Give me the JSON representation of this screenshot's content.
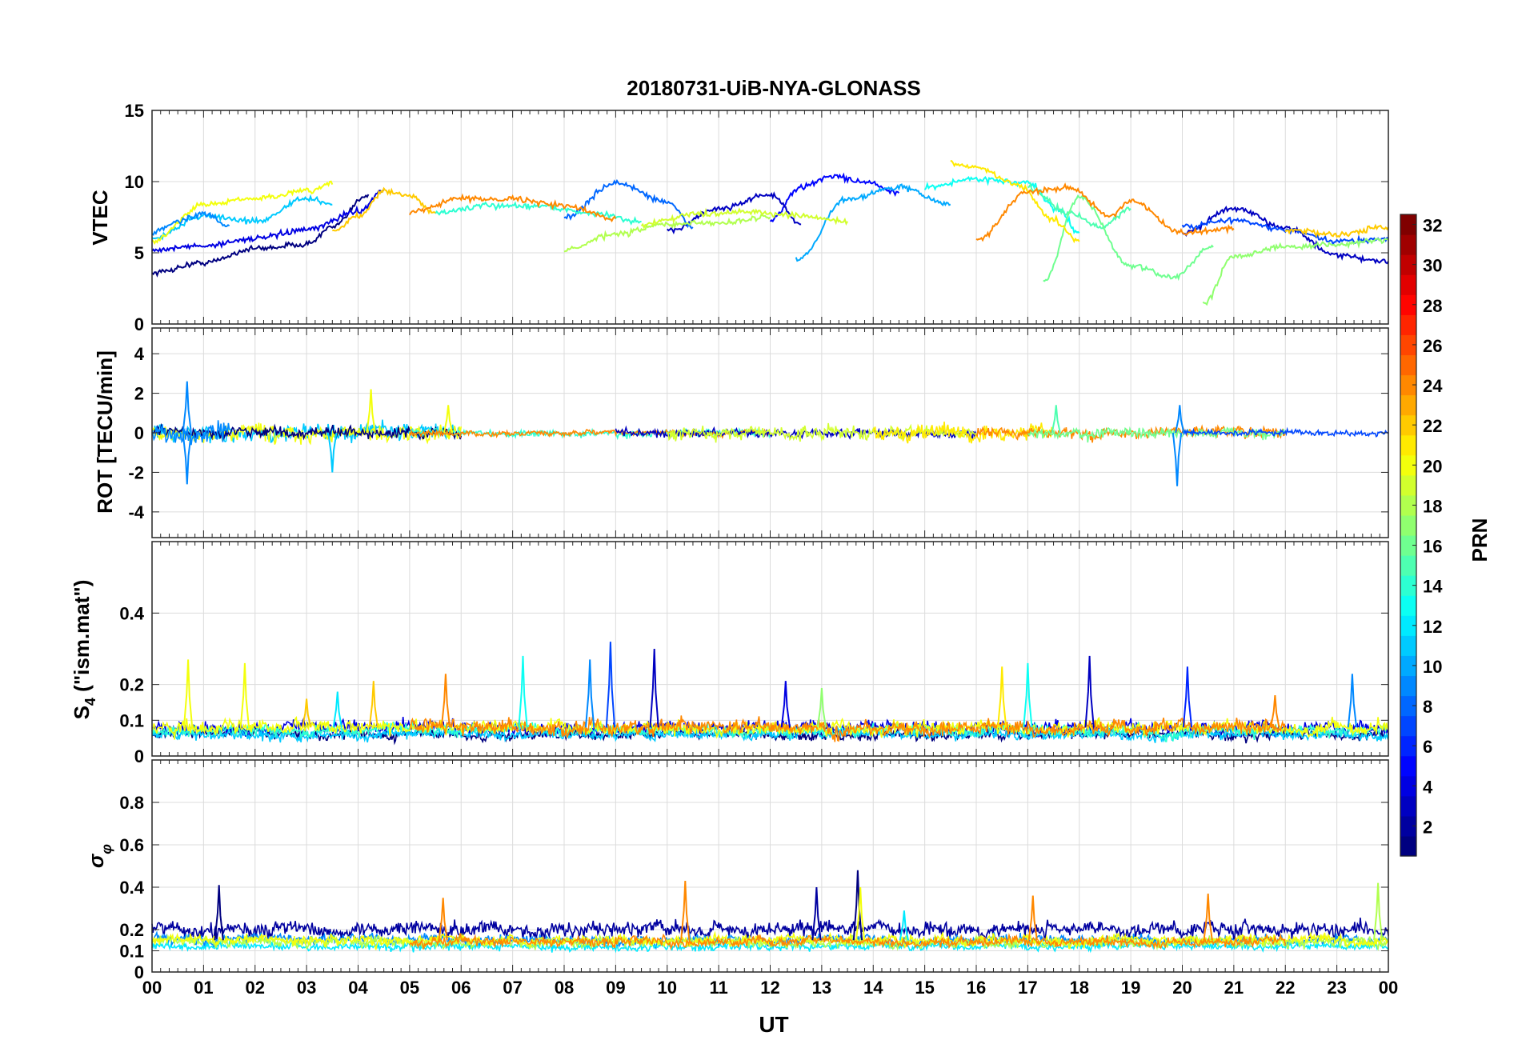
{
  "chart_data": [
    {
      "type": "line",
      "title": "20180731-UiB-NYA-GLONASS",
      "ylabel": "VTEC",
      "ylim": [
        0,
        15
      ],
      "yticks": [
        0,
        5,
        10,
        15
      ],
      "xlim": [
        0,
        24
      ],
      "series": [
        {
          "prn": 1,
          "x": [
            0.0,
            1.0,
            2.0,
            3.0,
            3.5,
            4.2
          ],
          "y": [
            3.6,
            4.3,
            5.3,
            5.6,
            6.8,
            9.1
          ]
        },
        {
          "prn": 4,
          "x": [
            0.0,
            1.0,
            2.0,
            3.0,
            4.0,
            4.5
          ],
          "y": [
            5.2,
            5.5,
            6.0,
            6.6,
            7.9,
            9.4
          ]
        },
        {
          "prn": 5,
          "x": [
            12.0,
            12.6,
            13.2,
            13.8,
            14.5
          ],
          "y": [
            7.3,
            9.6,
            10.4,
            10.0,
            9.2
          ]
        },
        {
          "prn": 3,
          "x": [
            10.0,
            11.0,
            12.0,
            12.6
          ],
          "y": [
            6.5,
            8.1,
            9.1,
            7.0
          ]
        },
        {
          "prn": 8,
          "x": [
            8.0,
            9.0,
            10.0,
            10.5
          ],
          "y": [
            7.5,
            9.9,
            8.6,
            6.8
          ]
        },
        {
          "prn": 3,
          "x": [
            20.0,
            21.0,
            22.0,
            23.0,
            24.0
          ],
          "y": [
            6.4,
            8.1,
            6.8,
            4.8,
            4.4
          ]
        },
        {
          "prn": 7,
          "x": [
            20.0,
            21.0,
            22.0,
            23.0,
            24.0
          ],
          "y": [
            6.8,
            7.3,
            6.6,
            5.8,
            6.0
          ]
        },
        {
          "prn": 10,
          "x": [
            12.5,
            13.5,
            14.5,
            15.5
          ],
          "y": [
            4.5,
            8.8,
            9.6,
            8.4
          ]
        },
        {
          "prn": 11,
          "x": [
            0.0,
            1.0,
            2.0,
            3.0,
            3.5
          ],
          "y": [
            6.0,
            7.6,
            7.2,
            8.8,
            8.4
          ]
        },
        {
          "prn": 13,
          "x": [
            15.0,
            16.0,
            17.0,
            17.6,
            18.0
          ],
          "y": [
            9.6,
            10.2,
            9.9,
            8.0,
            6.4
          ]
        },
        {
          "prn": 14,
          "x": [
            5.5,
            6.5,
            7.5,
            8.5,
            9.5
          ],
          "y": [
            7.8,
            8.3,
            8.3,
            7.8,
            7.2
          ]
        },
        {
          "prn": 15,
          "x": [
            17.0,
            17.8,
            18.4,
            19.0
          ],
          "y": [
            9.6,
            7.8,
            6.8,
            8.1
          ]
        },
        {
          "prn": 16,
          "x": [
            17.3,
            18.0,
            19.0,
            19.8,
            20.6
          ],
          "y": [
            3.0,
            8.9,
            4.1,
            3.3,
            5.4
          ]
        },
        {
          "prn": 17,
          "x": [
            20.4,
            21.0,
            22.0,
            23.0,
            24.0
          ],
          "y": [
            1.4,
            4.8,
            5.4,
            5.6,
            5.9
          ]
        },
        {
          "prn": 18,
          "x": [
            8.0,
            9.0,
            10.0,
            11.0,
            12.0
          ],
          "y": [
            5.2,
            6.3,
            7.0,
            7.1,
            7.5
          ]
        },
        {
          "prn": 19,
          "x": [
            9.5,
            10.5,
            11.5,
            12.5,
            13.5
          ],
          "y": [
            7.0,
            7.7,
            7.9,
            7.6,
            7.2
          ]
        },
        {
          "prn": 20,
          "x": [
            0.0,
            1.0,
            2.0,
            3.0,
            3.5
          ],
          "y": [
            5.8,
            8.4,
            8.8,
            9.3,
            9.8
          ]
        },
        {
          "prn": 21,
          "x": [
            15.5,
            16.0,
            16.8,
            17.5,
            18.0
          ],
          "y": [
            11.3,
            11.0,
            9.8,
            7.3,
            5.8
          ]
        },
        {
          "prn": 22,
          "x": [
            3.5,
            4.0,
            4.5,
            5.0,
            5.5
          ],
          "y": [
            6.5,
            7.6,
            9.3,
            9.0,
            7.8
          ]
        },
        {
          "prn": 22,
          "x": [
            22.0,
            23.0,
            24.0
          ],
          "y": [
            6.6,
            6.3,
            6.8
          ]
        },
        {
          "prn": 24,
          "x": [
            5.0,
            6.0,
            7.0,
            8.0,
            9.0
          ],
          "y": [
            7.9,
            8.8,
            8.8,
            8.3,
            7.4
          ]
        },
        {
          "prn": 24,
          "x": [
            16.0,
            17.0,
            17.8,
            18.6,
            19.0,
            20.0,
            21.0
          ],
          "y": [
            5.9,
            9.3,
            9.6,
            7.6,
            8.6,
            6.4,
            6.7
          ]
        },
        {
          "prn": 9,
          "x": [
            0.0,
            0.5,
            1.0,
            1.5
          ],
          "y": [
            6.4,
            7.2,
            7.8,
            6.9
          ]
        }
      ]
    },
    {
      "type": "line",
      "ylabel": "ROT [TECU/min]",
      "ylim": [
        -5.3,
        5.3
      ],
      "yticks": [
        -4,
        -2,
        0,
        2,
        4
      ],
      "xlim": [
        0,
        24
      ],
      "noise": [
        {
          "prn": 11,
          "from": 0.0,
          "to": 6.0,
          "sd": 0.35
        },
        {
          "prn": 20,
          "from": 0.0,
          "to": 6.0,
          "sd": 0.35
        },
        {
          "prn": 1,
          "from": 0.0,
          "to": 6.0,
          "sd": 0.22
        },
        {
          "prn": 14,
          "from": 5.0,
          "to": 12.0,
          "sd": 0.13
        },
        {
          "prn": 24,
          "from": 5.0,
          "to": 12.0,
          "sd": 0.12
        },
        {
          "prn": 3,
          "from": 9.0,
          "to": 16.0,
          "sd": 0.18
        },
        {
          "prn": 19,
          "from": 10.0,
          "to": 16.0,
          "sd": 0.28
        },
        {
          "prn": 21,
          "from": 14.0,
          "to": 17.5,
          "sd": 0.32
        },
        {
          "prn": 24,
          "from": 16.0,
          "to": 22.0,
          "sd": 0.24
        },
        {
          "prn": 16,
          "from": 17.0,
          "to": 22.0,
          "sd": 0.22
        },
        {
          "prn": 7,
          "from": 20.0,
          "to": 24.0,
          "sd": 0.12
        },
        {
          "prn": 9,
          "from": 0.0,
          "to": 1.5,
          "sd": 0.45
        }
      ],
      "spikes": [
        {
          "prn": 9,
          "x": 0.68,
          "y": 2.6
        },
        {
          "prn": 9,
          "x": 0.68,
          "y": -2.6
        },
        {
          "prn": 20,
          "x": 4.25,
          "y": 2.2
        },
        {
          "prn": 11,
          "x": 3.5,
          "y": -2.0
        },
        {
          "prn": 15,
          "x": 17.55,
          "y": 1.4
        },
        {
          "prn": 9,
          "x": 19.9,
          "y": -2.7
        },
        {
          "prn": 9,
          "x": 19.95,
          "y": 1.4
        },
        {
          "prn": 20,
          "x": 5.75,
          "y": 1.4
        }
      ]
    },
    {
      "type": "line",
      "ylabel": "S4 (\"ism.mat\")",
      "ylim": [
        0,
        0.6
      ],
      "yticks": [
        0,
        0.1,
        0.2,
        0.4
      ],
      "xlim": [
        0,
        24
      ],
      "noise": [
        {
          "prn": 1,
          "from": 0.0,
          "to": 24.0,
          "base": 0.06,
          "sd": 0.012
        },
        {
          "prn": 4,
          "from": 0.0,
          "to": 24.0,
          "base": 0.08,
          "sd": 0.015
        },
        {
          "prn": 11,
          "from": 0.0,
          "to": 24.0,
          "base": 0.06,
          "sd": 0.012
        },
        {
          "prn": 14,
          "from": 0.0,
          "to": 24.0,
          "base": 0.07,
          "sd": 0.014
        },
        {
          "prn": 20,
          "from": 0.0,
          "to": 24.0,
          "base": 0.08,
          "sd": 0.016
        },
        {
          "prn": 24,
          "from": 5.0,
          "to": 22.0,
          "base": 0.08,
          "sd": 0.018
        }
      ],
      "spikes": [
        {
          "prn": 20,
          "x": 0.7,
          "y": 0.27
        },
        {
          "prn": 20,
          "x": 1.8,
          "y": 0.26
        },
        {
          "prn": 22,
          "x": 3.0,
          "y": 0.16
        },
        {
          "prn": 22,
          "x": 4.3,
          "y": 0.21
        },
        {
          "prn": 12,
          "x": 3.6,
          "y": 0.18
        },
        {
          "prn": 24,
          "x": 5.7,
          "y": 0.23
        },
        {
          "prn": 13,
          "x": 7.2,
          "y": 0.28
        },
        {
          "prn": 9,
          "x": 8.5,
          "y": 0.27
        },
        {
          "prn": 7,
          "x": 8.9,
          "y": 0.32
        },
        {
          "prn": 3,
          "x": 9.75,
          "y": 0.3
        },
        {
          "prn": 4,
          "x": 12.3,
          "y": 0.21
        },
        {
          "prn": 17,
          "x": 13.0,
          "y": 0.19
        },
        {
          "prn": 21,
          "x": 16.5,
          "y": 0.25
        },
        {
          "prn": 13,
          "x": 17.0,
          "y": 0.26
        },
        {
          "prn": 3,
          "x": 18.2,
          "y": 0.28
        },
        {
          "prn": 6,
          "x": 20.1,
          "y": 0.25
        },
        {
          "prn": 9,
          "x": 23.3,
          "y": 0.23
        },
        {
          "prn": 24,
          "x": 21.8,
          "y": 0.17
        }
      ]
    },
    {
      "type": "line",
      "ylabel": "σφ",
      "ylim": [
        0,
        1
      ],
      "yticks": [
        0,
        0.1,
        0.2,
        0.4,
        0.6,
        0.8
      ],
      "xlim": [
        0,
        24
      ],
      "noise": [
        {
          "prn": 2,
          "from": 0.0,
          "to": 24.0,
          "base": 0.2,
          "sd": 0.03
        },
        {
          "prn": 9,
          "from": 0.0,
          "to": 24.0,
          "base": 0.15,
          "sd": 0.02
        },
        {
          "prn": 12,
          "from": 0.0,
          "to": 24.0,
          "base": 0.12,
          "sd": 0.015
        },
        {
          "prn": 18,
          "from": 0.0,
          "to": 24.0,
          "base": 0.14,
          "sd": 0.02
        },
        {
          "prn": 20,
          "from": 0.0,
          "to": 24.0,
          "base": 0.15,
          "sd": 0.02
        },
        {
          "prn": 24,
          "from": 5.0,
          "to": 22.0,
          "base": 0.14,
          "sd": 0.02
        }
      ],
      "spikes": [
        {
          "prn": 1,
          "x": 1.3,
          "y": 0.41
        },
        {
          "prn": 24,
          "x": 5.65,
          "y": 0.35
        },
        {
          "prn": 24,
          "x": 10.35,
          "y": 0.43
        },
        {
          "prn": 1,
          "x": 13.7,
          "y": 0.48
        },
        {
          "prn": 20,
          "x": 13.75,
          "y": 0.4
        },
        {
          "prn": 24,
          "x": 17.1,
          "y": 0.36
        },
        {
          "prn": 24,
          "x": 20.5,
          "y": 0.37
        },
        {
          "prn": 18,
          "x": 23.8,
          "y": 0.42
        },
        {
          "prn": 2,
          "x": 12.9,
          "y": 0.4
        },
        {
          "prn": 12,
          "x": 14.6,
          "y": 0.29
        }
      ]
    }
  ],
  "figure": {
    "title": "20180731-UiB-NYA-GLONASS",
    "xlabel": "UT",
    "xticks": [
      "00",
      "01",
      "02",
      "03",
      "04",
      "05",
      "06",
      "07",
      "08",
      "09",
      "10",
      "11",
      "12",
      "13",
      "14",
      "15",
      "16",
      "17",
      "18",
      "19",
      "20",
      "21",
      "22",
      "23",
      "00"
    ],
    "s4_label_main": "S",
    "s4_label_sub": "4",
    "s4_label_rest": " (\"ism.mat\")",
    "sigma_label_main": "σ",
    "sigma_label_sub": "φ"
  },
  "colorbar": {
    "label": "PRN",
    "range": [
      1,
      32
    ],
    "ticks": [
      2,
      4,
      6,
      8,
      10,
      12,
      14,
      16,
      18,
      20,
      22,
      24,
      26,
      28,
      30,
      32
    ],
    "colormap": "jet"
  }
}
